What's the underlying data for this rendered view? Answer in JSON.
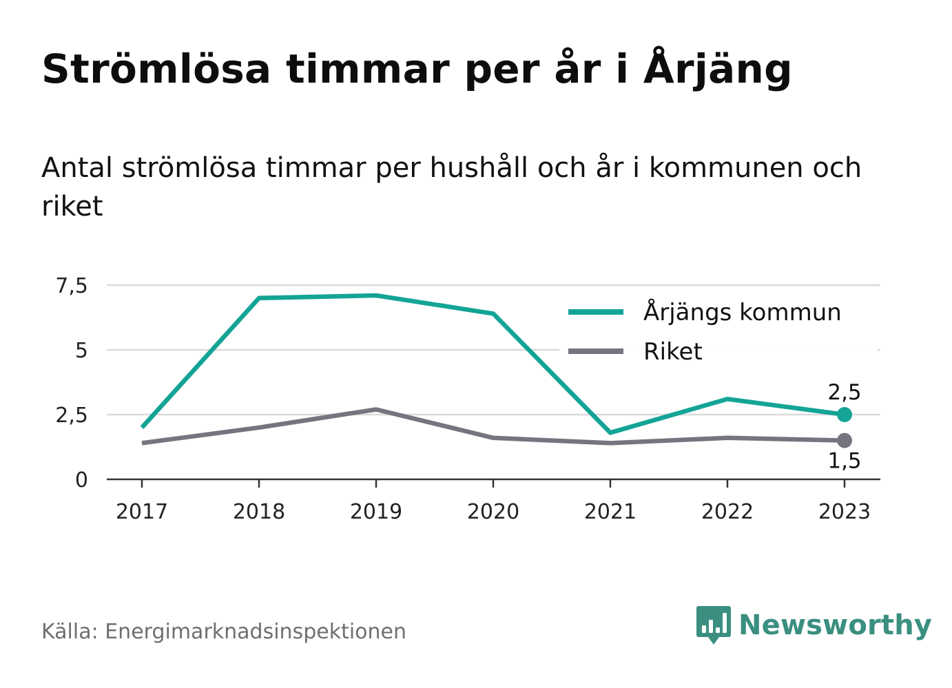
{
  "header": {
    "title": "Strömlösa timmar per år i Årjäng",
    "subtitle": "Antal strömlösa timmar per hushåll och år i kommunen och riket"
  },
  "footer": {
    "source": "Källa: Energimarknadsinspektionen",
    "brand": "Newsworthy",
    "brand_icon": "bar-chart-speech-bubble-icon"
  },
  "colors": {
    "series_1": "#13a496",
    "series_2": "#75757f",
    "grid": "#d9dadb",
    "axis": "#333333",
    "brand": "#3a8f80"
  },
  "chart_data": {
    "type": "line",
    "x": [
      "2017",
      "2018",
      "2019",
      "2020",
      "2021",
      "2022",
      "2023"
    ],
    "series": [
      {
        "name": "Årjängs kommun",
        "values": [
          2.0,
          7.0,
          7.1,
          6.4,
          1.8,
          3.1,
          2.5
        ],
        "end_label": "2,5"
      },
      {
        "name": "Riket",
        "values": [
          1.4,
          2.0,
          2.7,
          1.6,
          1.4,
          1.6,
          1.5
        ],
        "end_label": "1,5"
      }
    ],
    "yticks": [
      "0",
      "2,5",
      "5",
      "7,5"
    ],
    "ytick_values": [
      0,
      2.5,
      5,
      7.5
    ],
    "ylim": [
      0,
      7.5
    ],
    "grid": true,
    "legend_position": "top-right"
  }
}
